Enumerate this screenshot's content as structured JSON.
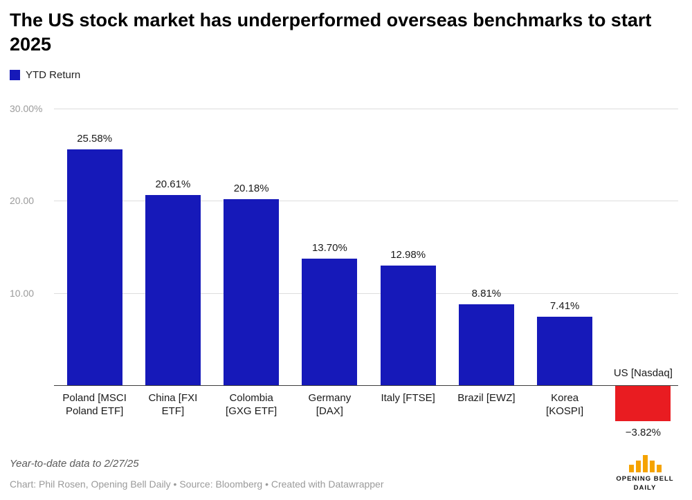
{
  "header": {
    "title": "The US stock market has underperformed overseas benchmarks to start 2025"
  },
  "legend": {
    "label": "YTD Return"
  },
  "chart_data": {
    "type": "bar",
    "series_name": "YTD Return",
    "categories": [
      "Poland [MSCI\nPoland ETF]",
      "China [FXI\nETF]",
      "Colombia\n[GXG ETF]",
      "Germany\n[DAX]",
      "Italy [FTSE]",
      "Brazil [EWZ]",
      "Korea\n[KOSPI]",
      "US [Nasdaq]"
    ],
    "values": [
      25.58,
      20.61,
      20.18,
      13.7,
      12.98,
      8.81,
      7.41,
      -3.82
    ],
    "value_labels": [
      "25.58%",
      "20.61%",
      "20.18%",
      "13.70%",
      "12.98%",
      "8.81%",
      "7.41%",
      "−3.82%"
    ],
    "ylabel": "",
    "xlabel": "",
    "ylim": [
      -8,
      30
    ],
    "yticks": [
      {
        "value": 30,
        "label": "30.00%"
      },
      {
        "value": 20,
        "label": "20.00"
      },
      {
        "value": 10,
        "label": "10.00"
      }
    ],
    "grid": "horizontal",
    "legend_position": "top-left",
    "bar_color": "#1619b9",
    "negative_bar_color": "#e91c21"
  },
  "footer": {
    "note": "Year-to-date data to 2/27/25",
    "credit": "Chart: Phil Rosen, Opening Bell Daily • Source: Bloomberg • Created with Datawrapper"
  },
  "logo": {
    "line1": "OPENING BELL",
    "line2": "DAILY",
    "bar_color": "#f5a300"
  }
}
